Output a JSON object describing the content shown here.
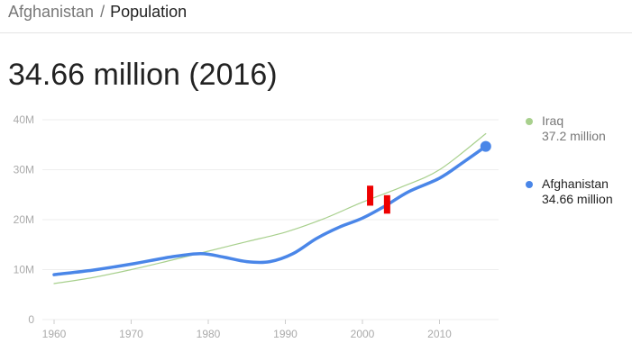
{
  "breadcrumb": {
    "country": "Afghanistan",
    "separator": "/",
    "metric": "Population"
  },
  "headline": "34.66 million (2016)",
  "legend": [
    {
      "name": "Iraq",
      "value": "37.2 million",
      "color": "#a8d08d"
    },
    {
      "name": "Afghanistan",
      "value": "34.66 million",
      "color": "#4a86e8"
    }
  ],
  "colors": {
    "annotation_marker": "#ee0000",
    "gridline": "#eeeeee",
    "axis_text": "#aaaaaa"
  },
  "chart_data": {
    "type": "line",
    "title": "",
    "xlabel": "",
    "ylabel": "",
    "xlim": [
      1960,
      2016
    ],
    "ylim": [
      0,
      40
    ],
    "x_ticks": [
      "1960",
      "1970",
      "1980",
      "1990",
      "2000",
      "2010"
    ],
    "y_ticks": [
      "0",
      "10M",
      "20M",
      "30M",
      "40M"
    ],
    "grid": true,
    "legend_position": "right",
    "series": [
      {
        "name": "Iraq",
        "color": "#a8d08d",
        "x": [
          1960,
          1965,
          1970,
          1975,
          1980,
          1985,
          1990,
          1995,
          2000,
          2005,
          2010,
          2016
        ],
        "y": [
          7.2,
          8.4,
          10.0,
          11.8,
          13.7,
          15.6,
          17.5,
          20.2,
          23.5,
          26.5,
          30.0,
          37.2
        ]
      },
      {
        "name": "Afghanistan",
        "color": "#4a86e8",
        "x": [
          1960,
          1965,
          1970,
          1975,
          1979,
          1982,
          1985,
          1988,
          1991,
          1994,
          1997,
          2000,
          2003,
          2006,
          2010,
          2013,
          2016
        ],
        "y": [
          9.0,
          9.9,
          11.1,
          12.5,
          13.2,
          12.5,
          11.6,
          11.6,
          13.2,
          16.2,
          18.5,
          20.3,
          22.8,
          25.6,
          28.3,
          31.4,
          34.66
        ]
      }
    ],
    "annotations": [
      {
        "type": "marker",
        "x": 2001,
        "y_range": [
          22.8,
          26.8
        ]
      },
      {
        "type": "marker",
        "x": 2003.2,
        "y_range": [
          21.2,
          24.9
        ]
      }
    ]
  }
}
